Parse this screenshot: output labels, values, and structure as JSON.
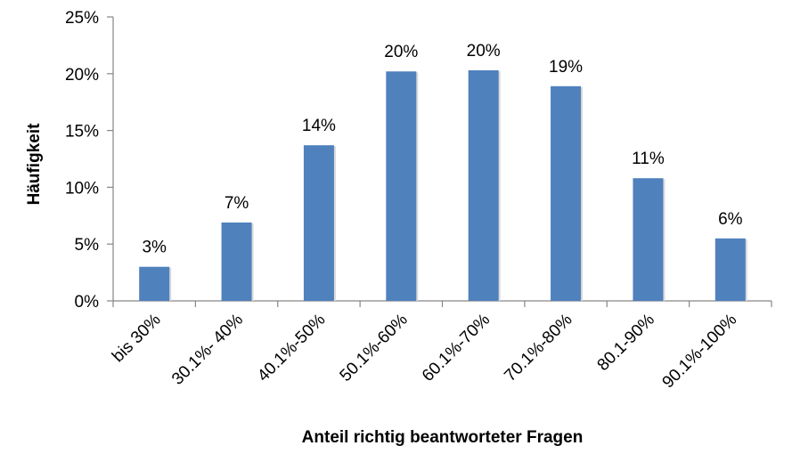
{
  "chart_data": {
    "type": "bar",
    "title": "",
    "xlabel": "Anteil richtig beantworteter Fragen",
    "ylabel": "Häufigkeit",
    "categories": [
      "bis 30%",
      "30.1%- 40%",
      "40.1%-50%",
      "50.1%-60%",
      "60.1%-70%",
      "70.1%-80%",
      "80.1-90%",
      "90.1%-100%"
    ],
    "values": [
      3,
      7,
      14,
      20,
      20,
      19,
      11,
      6
    ],
    "plotted_values": [
      3.0,
      6.9,
      13.7,
      20.2,
      20.3,
      18.9,
      10.8,
      5.5
    ],
    "data_labels": [
      "3%",
      "7%",
      "14%",
      "20%",
      "20%",
      "19%",
      "11%",
      "6%"
    ],
    "y_ticks": [
      0,
      5,
      10,
      15,
      20,
      25
    ],
    "y_tick_labels": [
      "0%",
      "5%",
      "10%",
      "15%",
      "20%",
      "25%"
    ],
    "ylim": [
      0,
      25
    ],
    "grid": false,
    "legend": "none",
    "bar_color": "#4f81bd",
    "axis_color": "#868686"
  }
}
